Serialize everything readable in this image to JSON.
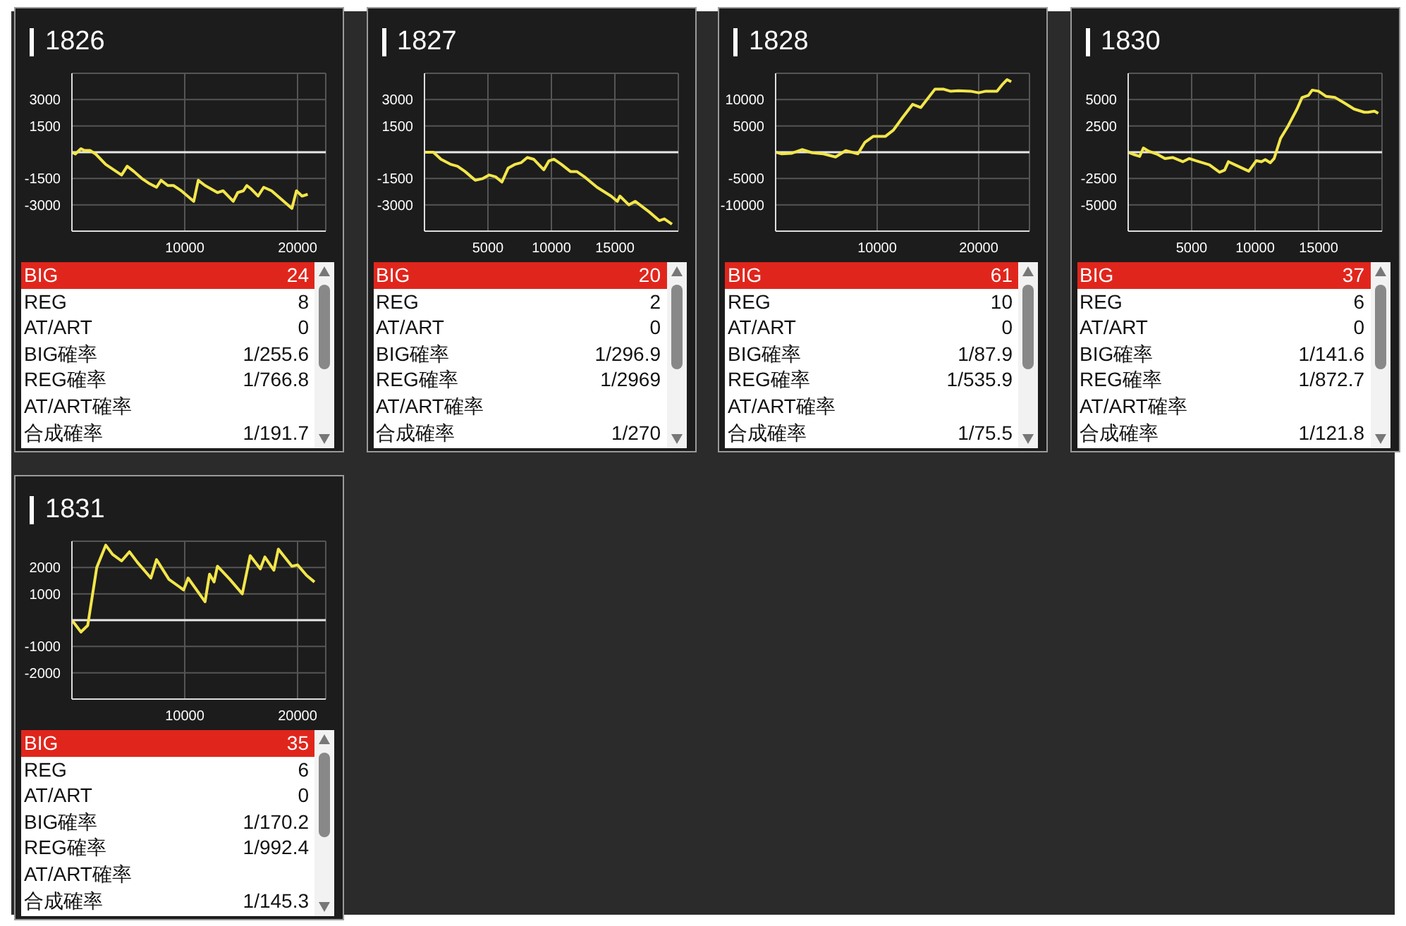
{
  "chart_data": [
    {
      "type": "line",
      "title": "1826",
      "color": "#f2e64a",
      "marker": "none",
      "grid": true,
      "xlim": [
        0,
        22500
      ],
      "xticks": [
        10000,
        20000
      ],
      "ylim": [
        -4500,
        4500
      ],
      "yticks": [
        -3000,
        -1500,
        1500,
        3000
      ],
      "ref_lines": [
        {
          "axis": "y",
          "value": 0,
          "color": "#e8e8e8"
        }
      ],
      "x": [
        0,
        300,
        800,
        1100,
        1600,
        2100,
        3000,
        3700,
        4400,
        4900,
        5500,
        6200,
        6900,
        7500,
        7900,
        8500,
        9000,
        9700,
        10800,
        11200,
        11800,
        12900,
        13400,
        14300,
        14700,
        15200,
        15500,
        15900,
        16500,
        17000,
        17700,
        18600,
        19500,
        19900,
        20400,
        20900
      ],
      "values": [
        0,
        -100,
        200,
        100,
        100,
        -100,
        -700,
        -1000,
        -1300,
        -800,
        -1100,
        -1500,
        -1800,
        -2000,
        -1600,
        -1900,
        -1900,
        -2200,
        -2800,
        -1600,
        -1900,
        -2300,
        -2200,
        -2800,
        -2300,
        -2200,
        -1900,
        -2100,
        -2500,
        -2000,
        -2200,
        -2700,
        -3200,
        -2200,
        -2500,
        -2400
      ]
    },
    {
      "type": "other",
      "annotations": [
        "BIG",
        "24",
        "REG",
        "8",
        "AT/ART",
        "0",
        "BIG確率",
        "1/255.6",
        "REG確率",
        "1/766.8",
        "AT/ART確率",
        null,
        "合成確率",
        "1/191.7"
      ]
    },
    {
      "type": "line",
      "title": "1827",
      "color": "#f2e64a",
      "marker": "none",
      "grid": true,
      "xlim": [
        0,
        20000
      ],
      "xticks": [
        5000,
        10000,
        15000
      ],
      "ylim": [
        -4500,
        4500
      ],
      "yticks": [
        -3000,
        -1500,
        1500,
        3000
      ],
      "ref_lines": [
        {
          "axis": "y",
          "value": 0,
          "color": "#e8e8e8"
        }
      ],
      "x": [
        0,
        700,
        1300,
        2100,
        2600,
        3200,
        4000,
        4600,
        5100,
        5600,
        6100,
        6600,
        7100,
        7600,
        8100,
        8600,
        9400,
        9800,
        10200,
        10800,
        11500,
        12000,
        12600,
        13600,
        14700,
        15200,
        15400,
        16100,
        16600,
        17700,
        18500,
        18900,
        19500
      ],
      "values": [
        0,
        0,
        -400,
        -700,
        -800,
        -1100,
        -1600,
        -1500,
        -1300,
        -1400,
        -1700,
        -900,
        -700,
        -600,
        -300,
        -400,
        -1000,
        -500,
        -400,
        -700,
        -1100,
        -1100,
        -1400,
        -2000,
        -2500,
        -2800,
        -2500,
        -3000,
        -2800,
        -3400,
        -3900,
        -3800,
        -4100
      ]
    },
    {
      "type": "other",
      "annotations": [
        "BIG",
        "20",
        "REG",
        "2",
        "AT/ART",
        "0",
        "BIG確率",
        "1/296.9",
        "REG確率",
        "1/2969",
        "AT/ART確率",
        null,
        "合成確率",
        "1/270"
      ]
    },
    {
      "type": "line",
      "title": "1828",
      "color": "#f2e64a",
      "marker": "none",
      "grid": true,
      "xlim": [
        0,
        25000
      ],
      "xticks": [
        10000,
        20000
      ],
      "ylim": [
        -15000,
        15000
      ],
      "yticks": [
        -10000,
        -5000,
        5000,
        10000
      ],
      "ref_lines": [
        {
          "axis": "y",
          "value": 0,
          "color": "#e8e8e8"
        }
      ],
      "x": [
        0,
        600,
        1600,
        2600,
        3600,
        4700,
        5900,
        6900,
        8100,
        8800,
        9600,
        10800,
        11600,
        12500,
        13500,
        14300,
        15700,
        16500,
        17200,
        18000,
        19200,
        20000,
        20700,
        21800,
        22300,
        22800,
        23200
      ],
      "values": [
        0,
        -300,
        -200,
        500,
        -100,
        -300,
        -900,
        300,
        -300,
        1900,
        3000,
        3000,
        4200,
        6600,
        9100,
        8500,
        12000,
        12000,
        11600,
        11700,
        11600,
        11300,
        11600,
        11600,
        12800,
        13800,
        13400
      ]
    },
    {
      "type": "other",
      "annotations": [
        "BIG",
        "61",
        "REG",
        "10",
        "AT/ART",
        "0",
        "BIG確率",
        "1/87.9",
        "REG確率",
        "1/535.9",
        "AT/ART確率",
        null,
        "合成確率",
        "1/75.5"
      ]
    },
    {
      "type": "line",
      "title": "1830",
      "color": "#f2e64a",
      "marker": "none",
      "grid": true,
      "xlim": [
        0,
        20000
      ],
      "xticks": [
        5000,
        10000,
        15000
      ],
      "ylim": [
        -7500,
        7500
      ],
      "yticks": [
        -5000,
        -2500,
        2500,
        5000
      ],
      "ref_lines": [
        {
          "axis": "y",
          "value": 0,
          "color": "#e8e8e8"
        }
      ],
      "x": [
        0,
        400,
        900,
        1200,
        1600,
        2300,
        2900,
        3500,
        4300,
        4800,
        5300,
        6400,
        7200,
        7600,
        7900,
        8600,
        9500,
        10100,
        10500,
        10800,
        11200,
        11500,
        12000,
        12600,
        13300,
        13700,
        14200,
        14500,
        15000,
        15600,
        16300,
        17000,
        17800,
        18600,
        18900,
        19400,
        19700
      ],
      "values": [
        0,
        -200,
        -400,
        400,
        100,
        -200,
        -600,
        -500,
        -900,
        -600,
        -800,
        -1200,
        -1900,
        -1700,
        -900,
        -1300,
        -1800,
        -800,
        -900,
        -700,
        -1000,
        -600,
        1300,
        2500,
        4100,
        5200,
        5400,
        5900,
        5800,
        5300,
        5200,
        4700,
        4100,
        3800,
        3800,
        3900,
        3700
      ]
    },
    {
      "type": "other",
      "annotations": [
        "BIG",
        "37",
        "REG",
        "6",
        "AT/ART",
        "0",
        "BIG確率",
        "1/141.6",
        "REG確率",
        "1/872.7",
        "AT/ART確率",
        null,
        "合成確率",
        "1/121.8"
      ]
    },
    {
      "type": "line",
      "title": "1831",
      "color": "#f2e64a",
      "marker": "none",
      "grid": true,
      "xlim": [
        0,
        22500
      ],
      "xticks": [
        10000,
        20000
      ],
      "ylim": [
        -3000,
        3000
      ],
      "yticks": [
        -2000,
        -1000,
        1000,
        2000
      ],
      "ref_lines": [
        {
          "axis": "y",
          "value": 0,
          "color": "#e8e8e8"
        }
      ],
      "x": [
        0,
        800,
        1400,
        2200,
        3000,
        3600,
        4400,
        5100,
        5800,
        7000,
        7500,
        8600,
        9900,
        10300,
        11800,
        12200,
        12600,
        12900,
        14000,
        15100,
        15800,
        16700,
        17100,
        17900,
        18300,
        19500,
        20000,
        20800,
        21500
      ],
      "values": [
        0,
        -450,
        -200,
        2000,
        2850,
        2500,
        2250,
        2600,
        2200,
        1600,
        2300,
        1550,
        1150,
        1600,
        700,
        1750,
        1450,
        2050,
        1550,
        1000,
        2450,
        1950,
        2400,
        1900,
        2700,
        2050,
        2100,
        1700,
        1450
      ]
    },
    {
      "type": "other",
      "annotations": [
        "BIG",
        "35",
        "REG",
        "6",
        "AT/ART",
        "0",
        "BIG確率",
        "1/170.2",
        "REG確率",
        "1/992.4",
        "AT/ART確率",
        null,
        "合成確率",
        "1/145.3"
      ]
    }
  ]
}
